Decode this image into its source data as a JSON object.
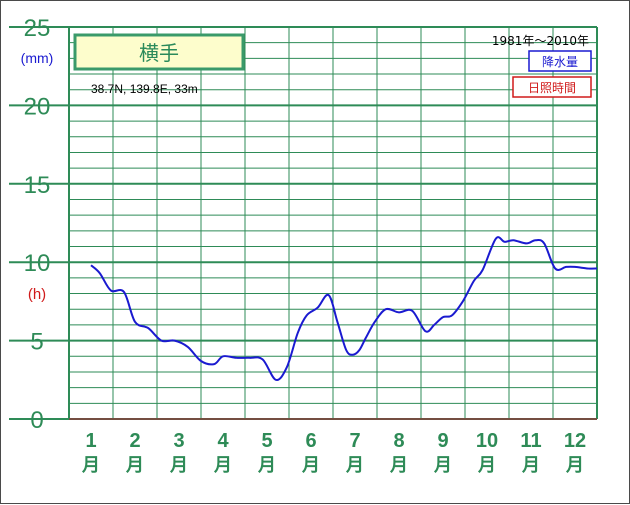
{
  "chart_data": {
    "type": "line",
    "station_name": "横手",
    "coordinates": "38.7N,  139.8E,  33m",
    "period": "1981年～2010年",
    "legend": [
      {
        "label": "降水量",
        "color": "#1a1ad0"
      },
      {
        "label": "日照時間",
        "color": "#d01a1a"
      }
    ],
    "y_unit_left_top": "(mm)",
    "y_unit_left_mid": "(h)",
    "ylim": [
      0,
      25
    ],
    "y_ticks": [
      "0",
      "5",
      "10",
      "15",
      "20",
      "25"
    ],
    "x_ticks": [
      {
        "num": "1",
        "unit": "月"
      },
      {
        "num": "2",
        "unit": "月"
      },
      {
        "num": "3",
        "unit": "月"
      },
      {
        "num": "4",
        "unit": "月"
      },
      {
        "num": "5",
        "unit": "月"
      },
      {
        "num": "6",
        "unit": "月"
      },
      {
        "num": "7",
        "unit": "月"
      },
      {
        "num": "8",
        "unit": "月"
      },
      {
        "num": "9",
        "unit": "月"
      },
      {
        "num": "10",
        "unit": "月"
      },
      {
        "num": "11",
        "unit": "月"
      },
      {
        "num": "12",
        "unit": "月"
      }
    ],
    "series": [
      {
        "name": "降水量",
        "color": "#1a1ad0",
        "x": [
          1.0,
          1.2,
          1.45,
          1.75,
          2.0,
          2.3,
          2.6,
          2.9,
          3.2,
          3.5,
          3.8,
          4.0,
          4.3,
          4.6,
          4.9,
          5.2,
          5.45,
          5.7,
          5.9,
          6.15,
          6.4,
          6.6,
          6.8,
          6.95,
          7.1,
          7.25,
          7.45,
          7.7,
          8.0,
          8.3,
          8.6,
          8.8,
          9.0,
          9.2,
          9.45,
          9.7,
          9.9,
          10.2,
          10.4,
          10.6,
          10.9,
          11.1,
          11.3,
          11.55,
          11.8,
          12.0,
          12.3,
          12.5
        ],
        "y": [
          9.8,
          9.3,
          8.2,
          8.1,
          6.2,
          5.8,
          5.0,
          5.0,
          4.6,
          3.7,
          3.5,
          4.0,
          3.9,
          3.9,
          3.8,
          2.5,
          3.3,
          5.5,
          6.6,
          7.1,
          7.9,
          6.2,
          4.4,
          4.1,
          4.4,
          5.2,
          6.2,
          7.0,
          6.8,
          6.9,
          5.6,
          6.0,
          6.5,
          6.6,
          7.5,
          8.8,
          9.5,
          11.5,
          11.3,
          11.4,
          11.2,
          11.4,
          11.2,
          9.6,
          9.7,
          9.7,
          9.6,
          9.6
        ]
      }
    ]
  }
}
